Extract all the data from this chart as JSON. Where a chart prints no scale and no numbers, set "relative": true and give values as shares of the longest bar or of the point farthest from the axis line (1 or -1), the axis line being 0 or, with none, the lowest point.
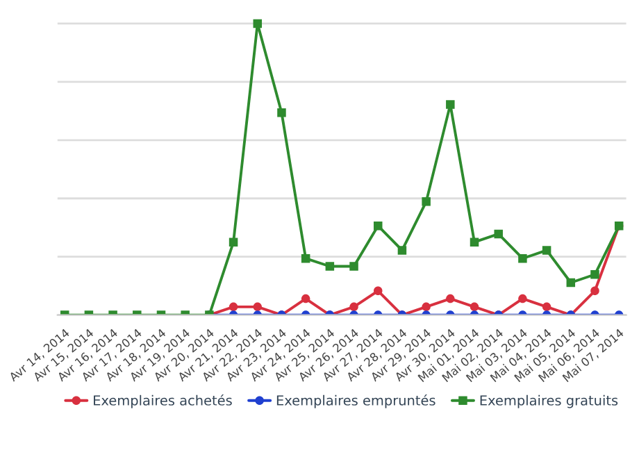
{
  "chart_data": {
    "type": "line",
    "relative": true,
    "grid": "y",
    "legend": "bottom",
    "line_style": "solid",
    "categories": [
      "Avr 14, 2014",
      "Avr 15, 2014",
      "Avr 16, 2014",
      "Avr 17, 2014",
      "Avr 18, 2014",
      "Avr 19, 2014",
      "Avr 20, 2014",
      "Avr 21, 2014",
      "Avr 22, 2014",
      "Avr 23, 2014",
      "Avr 24, 2014",
      "Avr 25, 2014",
      "Avr 26, 2014",
      "Avr 27, 2014",
      "Avr 28, 2014",
      "Avr 29, 2014",
      "Avr 30, 2014",
      "Mai 01, 2014",
      "Mai 02, 2014",
      "Mai 03, 2014",
      "Mai 04, 2014",
      "Mai 05, 2014",
      "Mai 06, 2014",
      "Mai 07, 2014"
    ],
    "series": [
      {
        "name": "Exemplaires achetés",
        "color": "#d8303f",
        "marker": "circle",
        "values": [
          null,
          null,
          null,
          null,
          null,
          null,
          0,
          0.028,
          0.028,
          0,
          0.056,
          0,
          0.028,
          0.083,
          0,
          0.028,
          0.056,
          0.028,
          0,
          0.056,
          0.028,
          0,
          0.083,
          0.306
        ]
      },
      {
        "name": "Exemplaires empruntés",
        "color": "#2040d0",
        "marker": "circle",
        "values": [
          null,
          null,
          null,
          null,
          null,
          null,
          0,
          0,
          0,
          0,
          0,
          0,
          0,
          0,
          0,
          0,
          0,
          0,
          0,
          0,
          0,
          0,
          0,
          0
        ]
      },
      {
        "name": "Exemplaires gratuits",
        "color": "#2e8b2e",
        "marker": "square",
        "values": [
          0,
          0,
          0,
          0,
          0,
          0,
          0,
          0.25,
          1,
          0.694,
          0.194,
          0.167,
          0.167,
          0.306,
          0.222,
          0.389,
          0.722,
          0.25,
          0.278,
          0.194,
          0.222,
          0.111,
          0.139,
          0.306
        ]
      }
    ]
  }
}
